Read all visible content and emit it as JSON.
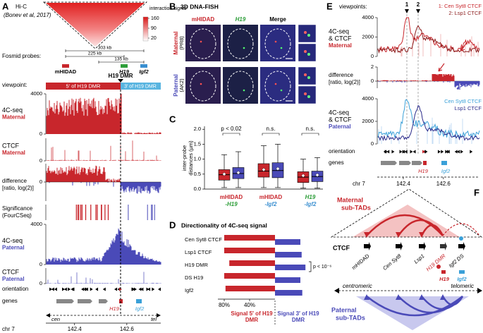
{
  "panel_A": {
    "letter": "A",
    "title": "Hi-C",
    "citation": "(Bonev et al, 2017)",
    "colorbar_title": "interaction signal",
    "colorbar_ticks": [
      160,
      90,
      20
    ],
    "fosmid_label": "Fosmid probes:",
    "distances": [
      "303 kb",
      "225 kb",
      "135 kb"
    ],
    "probes": [
      "mHIDAD",
      "H19",
      "Igf2"
    ],
    "probe_colors": [
      "#c8262c",
      "#2e9e3a",
      "#3a8fd0"
    ],
    "viewpoint_label": "viewpoint:",
    "viewpoint": "H19 DMR",
    "regions": [
      "5′ of H19 DMR",
      "3′ of H19 DMR"
    ],
    "tracks": [
      {
        "label": [
          "4C-seq",
          "Maternal"
        ],
        "color": "#c8262c",
        "ticks": [
          4000,
          0
        ]
      },
      {
        "label": [
          "CTCF",
          "Maternal"
        ],
        "color": "#c8262c",
        "ticks": [
          0
        ]
      },
      {
        "label": [
          "difference",
          "[ratio, log(2)]"
        ],
        "ticks": [
          0
        ]
      },
      {
        "label": [
          "Significance",
          "(FourCSeq)"
        ]
      },
      {
        "label": [
          "4C-seq",
          "Paternal"
        ],
        "color": "#4a4ab8",
        "ticks": [
          4000,
          0
        ]
      },
      {
        "label": [
          "CTCF",
          "Paternal"
        ],
        "color": "#4a4ab8",
        "ticks": [
          0
        ]
      },
      {
        "label": [
          "orientation"
        ]
      },
      {
        "label": [
          "genes"
        ]
      }
    ],
    "gene_labels": [
      "H19",
      "Igf2"
    ],
    "directions": [
      "cen",
      "tel"
    ],
    "chromosome": "chr 7",
    "xlim": [
      142.29,
      142.73
    ],
    "xticks": [
      142.4,
      142.6
    ]
  },
  "panel_B": {
    "letter": "B",
    "title": "3D DNA-FISH",
    "columns": [
      "mHIDAD",
      "H19",
      "Merge"
    ],
    "column_colors": [
      "#c8262c",
      "#2e9e3a",
      "#000000"
    ],
    "rows": [
      [
        "Maternal",
        "(PR8)"
      ],
      [
        "Paternal",
        "(AK2)"
      ]
    ],
    "row_colors": [
      "#c8262c",
      "#4a4ab8"
    ]
  },
  "panel_C": {
    "letter": "C",
    "y_label": [
      "inter-probe",
      "distances (µm)"
    ],
    "ylim": [
      0,
      2.1
    ],
    "yticks": [
      {
        "value": 0,
        "label": "0.0"
      },
      0.5,
      {
        "value": 1,
        "label": "1.0"
      },
      1.5,
      {
        "value": 2,
        "label": "2.0"
      }
    ],
    "groups": [
      {
        "label": [
          "mHIDAD",
          "-H19"
        ],
        "label_colors": [
          "#c8262c",
          "#2e9e3a"
        ],
        "annotation": "p < 0.02",
        "boxes": [
          {
            "color": "#c8262c",
            "whisker_low": 0.05,
            "q1": 0.3,
            "median": 0.48,
            "q3": 0.65,
            "whisker_high": 1.15,
            "mean": 0.5
          },
          {
            "color": "#4a4ab8",
            "whisker_low": 0.05,
            "q1": 0.35,
            "median": 0.52,
            "q3": 0.72,
            "whisker_high": 1.25,
            "mean": 0.55
          }
        ]
      },
      {
        "label": [
          "mHIDAD",
          "-Igf2"
        ],
        "label_colors": [
          "#c8262c",
          "#3a8fd0"
        ],
        "annotation": "n.s.",
        "boxes": [
          {
            "color": "#c8262c",
            "whisker_low": 0.05,
            "q1": 0.4,
            "median": 0.6,
            "q3": 0.85,
            "whisker_high": 1.45,
            "mean": 0.65
          },
          {
            "color": "#4a4ab8",
            "whisker_low": 0.05,
            "q1": 0.38,
            "median": 0.62,
            "q3": 0.88,
            "whisker_high": 1.5,
            "mean": 0.68
          }
        ]
      },
      {
        "label": [
          "H19",
          "-Igf2"
        ],
        "label_colors": [
          "#2e9e3a",
          "#3a8fd0"
        ],
        "annotation": "n.s.",
        "boxes": [
          {
            "color": "#c8262c",
            "whisker_low": 0.03,
            "q1": 0.22,
            "median": 0.4,
            "q3": 0.58,
            "whisker_high": 1.0,
            "mean": 0.45
          },
          {
            "color": "#4a4ab8",
            "whisker_low": 0.03,
            "q1": 0.25,
            "median": 0.42,
            "q3": 0.6,
            "whisker_high": 1.05,
            "mean": 0.47
          }
        ]
      }
    ]
  },
  "panel_D": {
    "letter": "D",
    "type": "bar",
    "title": "Directionality of 4C-seq signal",
    "categories": [
      "Cen Syt8 CTCF",
      "Lsp1 CTCF",
      "H19 DMR",
      "DS H19",
      "Igf2"
    ],
    "series": [
      {
        "name": "Signal 5′ of H19 DMR",
        "color": "#c8262c",
        "values": [
          80,
          80,
          72,
          80,
          78
        ]
      },
      {
        "name": "Signal 3′ of H19 DMR",
        "color": "#4a4ab8",
        "values": [
          40,
          42,
          48,
          40,
          43
        ]
      }
    ],
    "xlim": [
      90,
      0
    ],
    "xticks": [
      {
        "value": 80,
        "label": "80%"
      },
      {
        "value": 40,
        "label": "40%"
      }
    ],
    "annotation": "p < 10⁻⁶"
  },
  "panel_E": {
    "letter": "E",
    "viewpoint_label": "viewpoints:",
    "viewpoints": [
      "1",
      "2"
    ],
    "legend_maternal": [
      "1: Cen Syt8 CTCF",
      "2: Lsp1 CTCF"
    ],
    "legend_paternal": [
      "Cen Syt8 CTCF",
      "Lsp1 CTCF"
    ],
    "tracks": [
      {
        "label": [
          "4C-seq",
          "& CTCF",
          "Maternal"
        ],
        "color": "#c8262c",
        "ticks": [
          4000,
          2000,
          0
        ]
      },
      {
        "label": [
          "difference",
          "[ratio, log(2)]"
        ],
        "ticks": [
          2,
          0
        ]
      },
      {
        "label": [
          "4C-seq",
          "& CTCF",
          "Paternal"
        ],
        "color": "#4a4ab8",
        "ticks": [
          4000,
          2000,
          0
        ]
      },
      {
        "label": [
          "orientation"
        ]
      },
      {
        "label": [
          "genes"
        ]
      }
    ],
    "gene_labels": [
      "H19",
      "Igf2"
    ],
    "chromosome": "chr 7",
    "xlim": [
      142.27,
      142.78
    ],
    "xticks": [
      142.4,
      142.6
    ]
  },
  "panel_F": {
    "letter": "F",
    "maternal": [
      "Maternal",
      "sub-TADs"
    ],
    "ctcf": "CTCF",
    "sites": [
      "mHIDAD",
      "Cen Syt8",
      "Lsp1",
      "H19 DMR",
      "Igf2 DS"
    ],
    "genes": [
      "H19",
      "Igf2"
    ],
    "directions": [
      "centromeric",
      "telomeric"
    ],
    "paternal": [
      "Paternal",
      "sub-TADs"
    ]
  }
}
